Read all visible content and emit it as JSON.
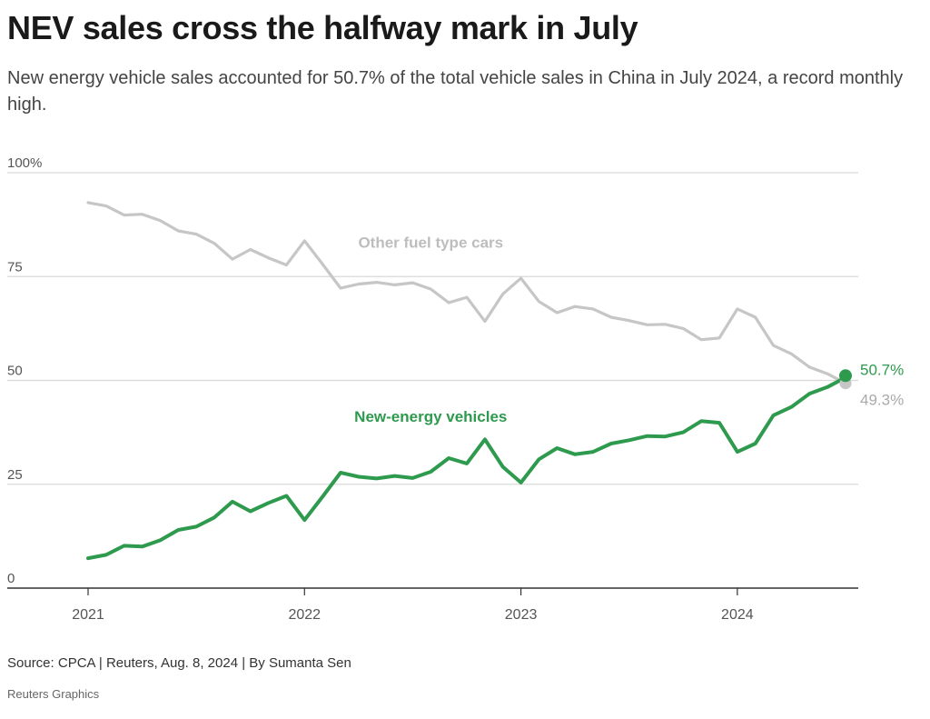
{
  "header": {
    "title": "NEV sales cross the halfway mark in July",
    "subtitle": "New energy vehicle sales accounted for 50.7% of the total vehicle sales in China in July 2024, a record monthly high."
  },
  "footer": {
    "source": "Source: CPCA | Reuters, Aug. 8, 2024 | By Sumanta Sen",
    "credit": "Reuters Graphics"
  },
  "colors": {
    "nev": "#2e9a4e",
    "other": "#c6c6c6",
    "grid": "#d9d9d9",
    "axis": "#333333"
  },
  "chart_data": {
    "type": "line",
    "title": "NEV sales cross the halfway mark in July",
    "x_start": "2021-01",
    "x_end": "2024-07",
    "x_ticks": [
      {
        "label": "2021",
        "date": "2021-01"
      },
      {
        "label": "2022",
        "date": "2022-01"
      },
      {
        "label": "2023",
        "date": "2023-01"
      },
      {
        "label": "2024",
        "date": "2024-01"
      }
    ],
    "ylim": [
      0,
      100
    ],
    "y_ticks": [
      {
        "value": 100,
        "label": "100%"
      },
      {
        "value": 75,
        "label": "75"
      },
      {
        "value": 50,
        "label": "50"
      },
      {
        "value": 25,
        "label": "25"
      },
      {
        "value": 0,
        "label": "0"
      }
    ],
    "grid": true,
    "series": [
      {
        "name": "Other fuel type cars",
        "color": "#c6c6c6",
        "end_label": "49.3%",
        "values": [
          92.8,
          92.0,
          89.8,
          90.0,
          88.5,
          86.0,
          85.2,
          83.0,
          79.2,
          81.5,
          79.5,
          77.8,
          83.6,
          78.0,
          72.2,
          73.2,
          73.6,
          73.0,
          73.5,
          72.0,
          68.7,
          70.0,
          64.2,
          70.8,
          74.6,
          69.0,
          66.3,
          67.8,
          67.2,
          65.2,
          64.4,
          63.4,
          63.5,
          62.5,
          59.8,
          60.2,
          67.2,
          65.2,
          58.4,
          56.4,
          53.2,
          51.6,
          49.3
        ]
      },
      {
        "name": "New-energy vehicles",
        "color": "#2e9a4e",
        "end_label": "50.7%",
        "values": [
          7.2,
          8.0,
          10.2,
          10.0,
          11.5,
          14.0,
          14.8,
          17.0,
          20.8,
          18.5,
          20.5,
          22.2,
          16.4,
          22.0,
          27.8,
          26.8,
          26.4,
          27.0,
          26.5,
          28.0,
          31.3,
          30.0,
          35.8,
          29.2,
          25.4,
          31.0,
          33.7,
          32.2,
          32.8,
          34.8,
          35.6,
          36.6,
          36.5,
          37.5,
          40.2,
          39.8,
          32.8,
          34.8,
          41.6,
          43.6,
          46.8,
          48.4,
          50.7
        ]
      }
    ],
    "annotations": [
      {
        "text": "Other fuel type cars",
        "series": "Other fuel type cars",
        "date": "2022-08",
        "value": 82
      },
      {
        "text": "New-energy vehicles",
        "series": "New-energy vehicles",
        "date": "2022-08",
        "value": 40
      }
    ]
  }
}
